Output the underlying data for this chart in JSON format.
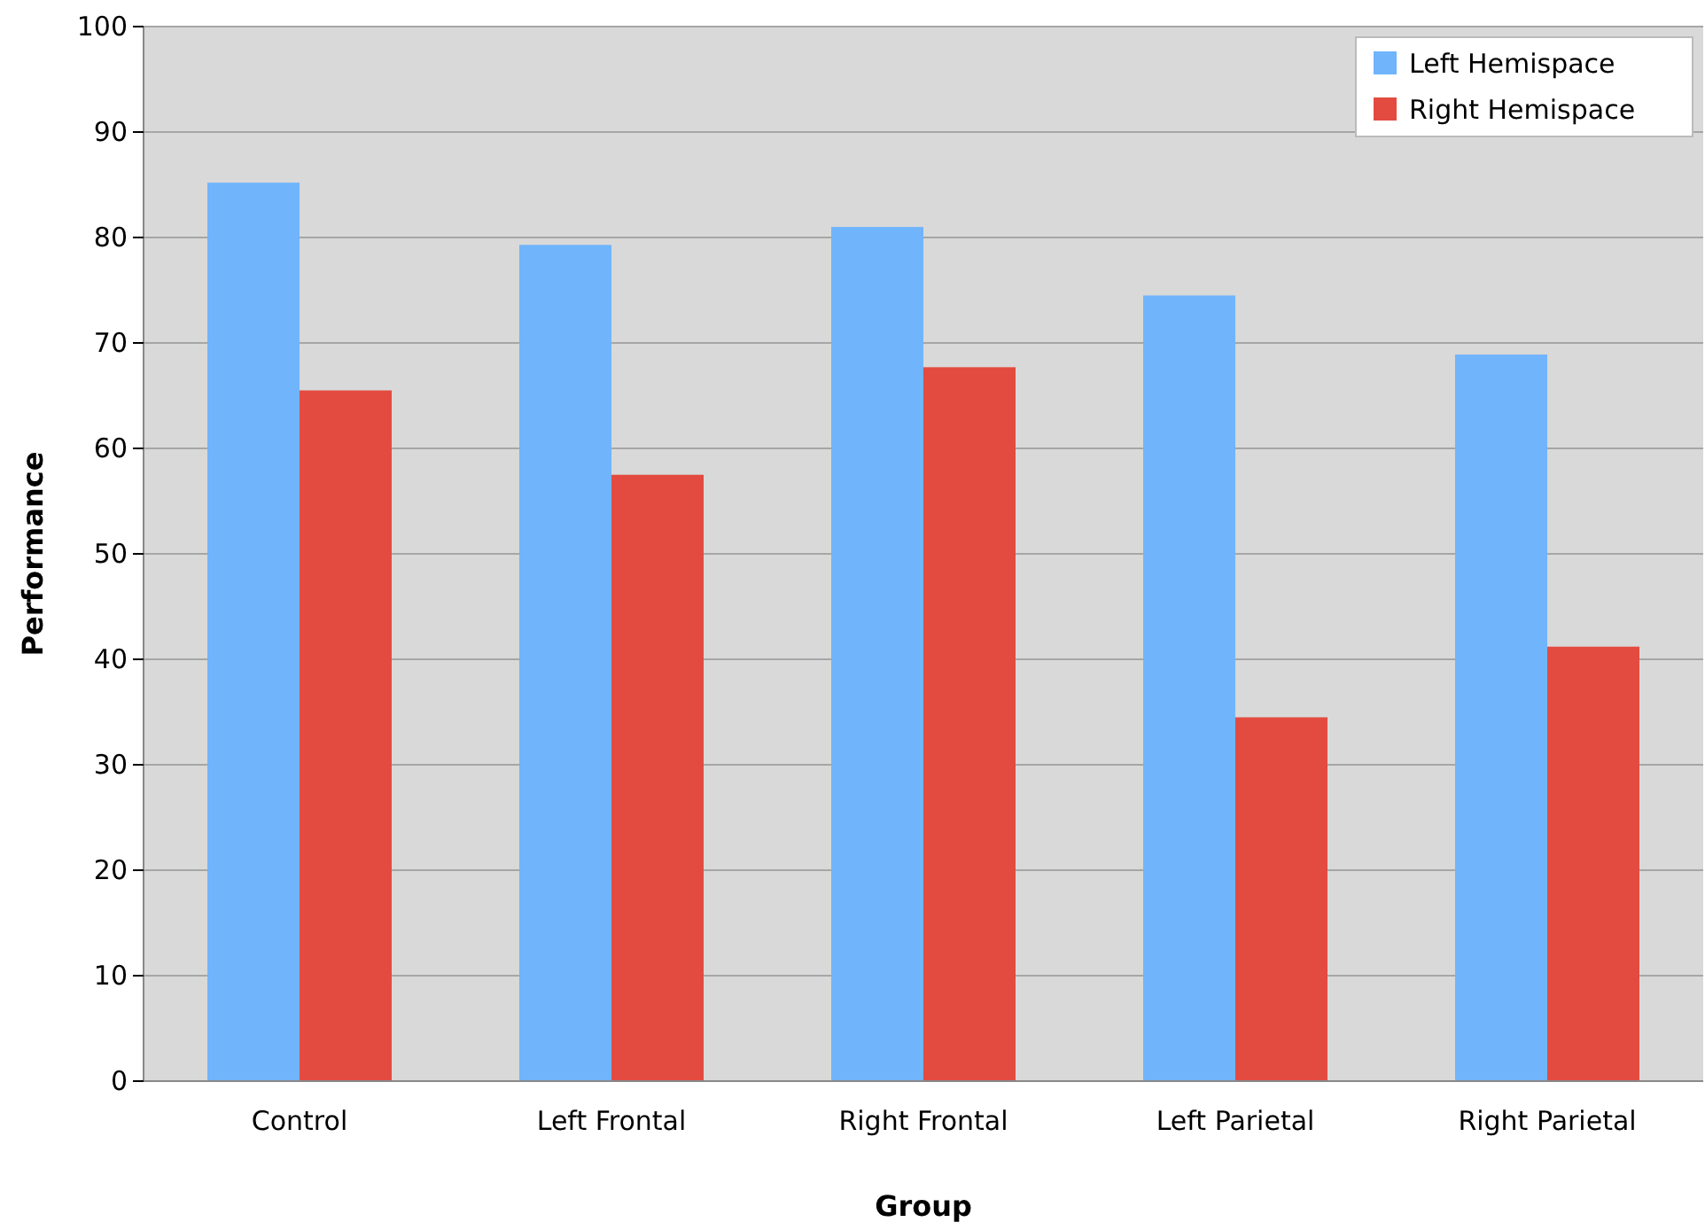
{
  "chart_data": {
    "type": "bar",
    "xlabel": "Group",
    "ylabel": "Performance",
    "categories": [
      "Control",
      "Left Frontal",
      "Right Frontal",
      "Left Parietal",
      "Right Parietal"
    ],
    "series": [
      {
        "name": "Left Hemispace",
        "color": "#70b4fc",
        "values": [
          85.2,
          79.3,
          81.0,
          74.5,
          68.9
        ]
      },
      {
        "name": "Right Hemispace",
        "color": "#e34b40",
        "values": [
          65.5,
          57.5,
          67.7,
          34.5,
          41.2
        ]
      }
    ],
    "ylim": [
      0,
      100
    ],
    "yticks": [
      0,
      10,
      20,
      30,
      40,
      50,
      60,
      70,
      80,
      90,
      100
    ],
    "grid": "y",
    "legend": "top right"
  }
}
